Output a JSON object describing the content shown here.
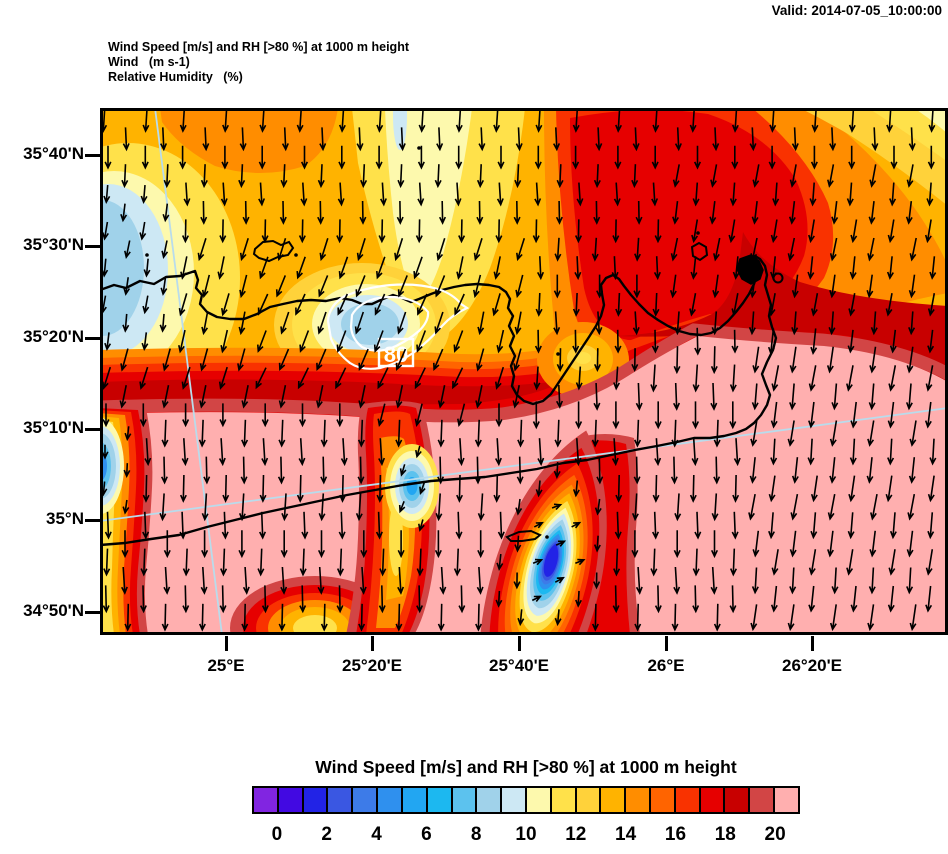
{
  "validity": {
    "label": "Valid: 2014-07-05_10:00:00"
  },
  "titles": {
    "line1": "Wind Speed [m/s] and RH [>80 %] at 1000 m height",
    "line2": "Wind   (m s-1)",
    "line3": "Relative Humidity   (%)"
  },
  "axes": {
    "lat_labels": [
      "35°40'N",
      "35°30'N",
      "35°20'N",
      "35°10'N",
      "35°N",
      "34°50'N"
    ],
    "lon_labels": [
      "25°E",
      "25°20'E",
      "25°40'E",
      "26°E",
      "26°20'E"
    ]
  },
  "map_overlay": {
    "rh_contour_label": "80"
  },
  "legend": {
    "title": "Wind Speed [m/s] and RH [>80 %] at 1000 m height",
    "tick_labels": [
      "0",
      "2",
      "4",
      "6",
      "8",
      "10",
      "12",
      "14",
      "16",
      "18",
      "20"
    ],
    "cell_colors": [
      "#8125e1",
      "#4209e2",
      "#2223e6",
      "#3a57e2",
      "#3d7be8",
      "#2f90ee",
      "#22a6f2",
      "#1cb8f0",
      "#5cc2ee",
      "#a0d2ea",
      "#cde8f4",
      "#fdf9ad",
      "#ffe14a",
      "#ffd23a",
      "#ffb300",
      "#ff8d00",
      "#ff6400",
      "#f93200",
      "#e60000",
      "#c80000",
      "#d24545",
      "#ffafaf"
    ]
  },
  "palette": {
    "gold": "#ffb300",
    "gold2": "#ffd23a",
    "yellow": "#ffe14a",
    "pale": "#fdf9ad",
    "orange": "#ff8d00",
    "verm2": "#ff6400",
    "verm": "#f93200",
    "red": "#e60000",
    "dark": "#c80000",
    "brick": "#d24545",
    "pink": "#ffafaf",
    "cde": "#cde8f4",
    "a0d": "#a0d2ea",
    "sky": "#5cc2ee",
    "cyn": "#1cb8f0",
    "azu": "#22a6f2",
    "mid": "#2f90ee",
    "blu": "#3d7be8",
    "roy": "#3a57e2",
    "deep": "#2223e6",
    "indigo": "#4209e2",
    "purple": "#8125e1",
    "gridline": "#b9dcec",
    "coast": "#000000",
    "contour": "#ffffff",
    "arrow": "#000000"
  },
  "chart_data": {
    "type": "heatmap",
    "title": "Wind Speed [m/s] and RH [>80 %] at 1000 m height",
    "valid_time": "2014-07-05_10:00:00",
    "fields": [
      "Wind   (m s-1)",
      "Relative Humidity   (%)"
    ],
    "x_tick_labels": [
      "25°E",
      "25°20'E",
      "25°40'E",
      "26°E",
      "26°20'E"
    ],
    "y_tick_labels": [
      "35°40'N",
      "35°30'N",
      "35°20'N",
      "35°10'N",
      "35°N",
      "34°50'N"
    ],
    "colorbar": {
      "units": "m/s",
      "boundary_values": [
        0,
        2,
        4,
        6,
        8,
        10,
        12,
        14,
        16,
        18,
        20
      ],
      "cell_interval": 1,
      "cell_colors": [
        "#8125e1",
        "#4209e2",
        "#2223e6",
        "#3a57e2",
        "#3d7be8",
        "#2f90ee",
        "#22a6f2",
        "#1cb8f0",
        "#5cc2ee",
        "#a0d2ea",
        "#cde8f4",
        "#fdf9ad",
        "#ffe14a",
        "#ffd23a",
        "#ffb300",
        "#ff8d00",
        "#ff6400",
        "#f93200",
        "#e60000",
        "#c80000",
        "#d24545",
        "#ffafaf"
      ]
    },
    "annotations": [
      "80"
    ],
    "wind_direction": "northerly (vectors point south), slight SW lean west of center, weak easterly turning inside calm wake",
    "features": [
      "pink >20 m/s band covering sea south of Crete",
      "dark red / red maximum band across ~35°12'N and over NE quadrant",
      "calm blue wake (2-4 m/s) south of Dikti mountains near 25°40'E 34°55'N",
      "small calm spot near 25°22'E 35°05'N and at west map edge ~35°08'N",
      "light-blue 6-8 m/s patch with RH>80% white contour labeled 80 near 25°22'E 35°21'N",
      "yellow weak-wind area with light blue patch at NW map edge ~35°32'N"
    ]
  }
}
